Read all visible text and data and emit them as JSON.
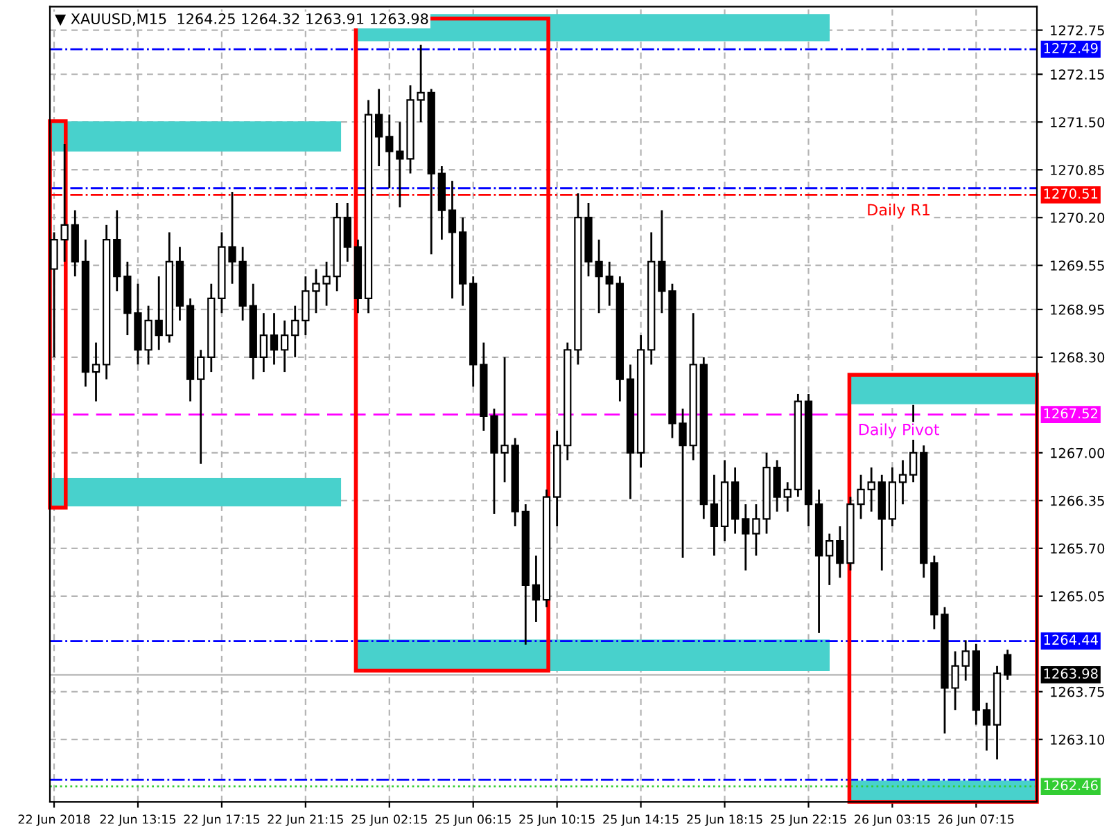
{
  "chart_data": {
    "type": "candlestick",
    "title": "▼ XAUUSD,M15  1264.25 1264.32 1263.91 1263.98",
    "categories": [
      "22 Jun 2018",
      null,
      null,
      null,
      null,
      null,
      null,
      null,
      "22 Jun 13:15",
      null,
      null,
      null,
      null,
      null,
      null,
      null,
      "22 Jun 17:15",
      null,
      null,
      null,
      null,
      null,
      null,
      null,
      "22 Jun 21:15",
      null,
      null,
      null,
      null,
      null,
      null,
      null,
      "25 Jun 02:15",
      null,
      null,
      null,
      null,
      null,
      null,
      null,
      "25 Jun 06:15",
      null,
      null,
      null,
      null,
      null,
      null,
      null,
      "25 Jun 10:15",
      null,
      null,
      null,
      null,
      null,
      null,
      null,
      "25 Jun 14:15",
      null,
      null,
      null,
      null,
      null,
      null,
      null,
      "25 Jun 18:15",
      null,
      null,
      null,
      null,
      null,
      null,
      null,
      "25 Jun 22:15",
      null,
      null,
      null,
      null,
      null,
      null,
      null,
      "26 Jun 03:15",
      null,
      null,
      null,
      null,
      null,
      null,
      null,
      "26 Jun 07:15",
      null,
      null,
      null
    ],
    "ohlc": [
      [
        1269.5,
        1270.0,
        1268.3,
        1269.9
      ],
      [
        1269.9,
        1271.2,
        1269.6,
        1270.1
      ],
      [
        1270.1,
        1270.3,
        1269.4,
        1269.6
      ],
      [
        1269.6,
        1269.9,
        1267.9,
        1268.1
      ],
      [
        1268.1,
        1268.5,
        1267.7,
        1268.2
      ],
      [
        1268.2,
        1270.1,
        1268.0,
        1269.9
      ],
      [
        1269.9,
        1270.3,
        1269.2,
        1269.4
      ],
      [
        1269.4,
        1269.6,
        1268.6,
        1268.9
      ],
      [
        1268.9,
        1269.3,
        1268.2,
        1268.4
      ],
      [
        1268.4,
        1269.0,
        1268.2,
        1268.8
      ],
      [
        1268.8,
        1269.4,
        1268.4,
        1268.6
      ],
      [
        1268.6,
        1270.0,
        1268.5,
        1269.6
      ],
      [
        1269.6,
        1269.8,
        1268.8,
        1269.0
      ],
      [
        1269.0,
        1269.1,
        1267.7,
        1268.0
      ],
      [
        1268.0,
        1268.4,
        1266.85,
        1268.3
      ],
      [
        1268.3,
        1269.3,
        1268.1,
        1269.1
      ],
      [
        1269.1,
        1270.0,
        1268.9,
        1269.8
      ],
      [
        1269.8,
        1270.55,
        1269.3,
        1269.6
      ],
      [
        1269.6,
        1269.8,
        1268.8,
        1269.0
      ],
      [
        1269.0,
        1269.3,
        1268.0,
        1268.3
      ],
      [
        1268.3,
        1268.9,
        1268.1,
        1268.6
      ],
      [
        1268.6,
        1268.9,
        1268.2,
        1268.4
      ],
      [
        1268.4,
        1268.8,
        1268.1,
        1268.6
      ],
      [
        1268.6,
        1269.0,
        1268.3,
        1268.8
      ],
      [
        1268.8,
        1269.4,
        1268.6,
        1269.2
      ],
      [
        1269.2,
        1269.5,
        1268.9,
        1269.3
      ],
      [
        1269.3,
        1269.6,
        1269.0,
        1269.4
      ],
      [
        1269.4,
        1270.4,
        1269.2,
        1270.2
      ],
      [
        1270.2,
        1270.4,
        1269.6,
        1269.8
      ],
      [
        1269.8,
        1269.9,
        1268.9,
        1269.1
      ],
      [
        1269.1,
        1271.8,
        1268.9,
        1271.6
      ],
      [
        1271.6,
        1271.95,
        1270.9,
        1271.3
      ],
      [
        1271.3,
        1271.6,
        1270.6,
        1271.1
      ],
      [
        1271.1,
        1271.5,
        1270.34,
        1271.0
      ],
      [
        1271.0,
        1272.0,
        1270.8,
        1271.8
      ],
      [
        1271.8,
        1272.55,
        1271.5,
        1271.9
      ],
      [
        1271.9,
        1271.95,
        1269.7,
        1270.8
      ],
      [
        1270.8,
        1270.9,
        1269.9,
        1270.3
      ],
      [
        1270.3,
        1270.7,
        1269.1,
        1270.0
      ],
      [
        1270.0,
        1270.2,
        1269.0,
        1269.3
      ],
      [
        1269.3,
        1269.4,
        1267.9,
        1268.2
      ],
      [
        1268.2,
        1268.5,
        1267.3,
        1267.5
      ],
      [
        1267.5,
        1267.6,
        1266.17,
        1267.0
      ],
      [
        1267.0,
        1268.3,
        1266.6,
        1267.1
      ],
      [
        1267.1,
        1267.2,
        1266.0,
        1266.2
      ],
      [
        1266.2,
        1266.3,
        1264.39,
        1265.2
      ],
      [
        1265.2,
        1265.6,
        1264.7,
        1265.0
      ],
      [
        1265.0,
        1266.5,
        1264.9,
        1266.4
      ],
      [
        1266.4,
        1267.3,
        1266.0,
        1267.1
      ],
      [
        1267.1,
        1268.5,
        1266.9,
        1268.4
      ],
      [
        1268.4,
        1270.53,
        1268.2,
        1270.2
      ],
      [
        1270.2,
        1270.4,
        1269.4,
        1269.6
      ],
      [
        1269.6,
        1269.9,
        1268.9,
        1269.4
      ],
      [
        1269.4,
        1269.6,
        1269.0,
        1269.3
      ],
      [
        1269.3,
        1269.4,
        1267.7,
        1268.0
      ],
      [
        1268.0,
        1268.2,
        1266.37,
        1267.0
      ],
      [
        1267.0,
        1268.6,
        1266.8,
        1268.4
      ],
      [
        1268.4,
        1270.0,
        1268.2,
        1269.6
      ],
      [
        1269.6,
        1270.3,
        1268.9,
        1269.2
      ],
      [
        1269.2,
        1269.3,
        1267.2,
        1267.4
      ],
      [
        1267.4,
        1267.6,
        1265.57,
        1267.1
      ],
      [
        1267.1,
        1268.9,
        1266.9,
        1268.2
      ],
      [
        1268.2,
        1268.3,
        1266.1,
        1266.3
      ],
      [
        1266.3,
        1266.7,
        1265.6,
        1266.0
      ],
      [
        1266.0,
        1266.9,
        1265.8,
        1266.6
      ],
      [
        1266.6,
        1266.8,
        1265.9,
        1266.1
      ],
      [
        1266.1,
        1266.3,
        1265.4,
        1265.9
      ],
      [
        1265.9,
        1266.3,
        1265.6,
        1266.1
      ],
      [
        1266.1,
        1267.0,
        1265.9,
        1266.8
      ],
      [
        1266.8,
        1266.9,
        1266.2,
        1266.4
      ],
      [
        1266.4,
        1266.6,
        1266.2,
        1266.5
      ],
      [
        1266.5,
        1267.8,
        1266.4,
        1267.7
      ],
      [
        1267.7,
        1267.8,
        1266.0,
        1266.3
      ],
      [
        1266.3,
        1266.5,
        1264.55,
        1265.6
      ],
      [
        1265.6,
        1265.9,
        1265.2,
        1265.8
      ],
      [
        1265.8,
        1266.0,
        1265.3,
        1265.5
      ],
      [
        1265.5,
        1266.4,
        1265.4,
        1266.3
      ],
      [
        1266.3,
        1266.7,
        1266.1,
        1266.5
      ],
      [
        1266.5,
        1266.8,
        1266.2,
        1266.6
      ],
      [
        1266.6,
        1266.7,
        1265.4,
        1266.1
      ],
      [
        1266.1,
        1266.8,
        1266.0,
        1266.6
      ],
      [
        1266.6,
        1266.9,
        1266.3,
        1266.7
      ],
      [
        1266.7,
        1267.65,
        1266.6,
        1267.0
      ],
      [
        1267.0,
        1267.1,
        1265.3,
        1265.5
      ],
      [
        1265.5,
        1265.6,
        1264.6,
        1264.8
      ],
      [
        1264.8,
        1264.9,
        1263.18,
        1263.8
      ],
      [
        1263.8,
        1264.3,
        1263.5,
        1264.1
      ],
      [
        1264.1,
        1264.45,
        1263.9,
        1264.3
      ],
      [
        1264.3,
        1264.4,
        1263.3,
        1263.5
      ],
      [
        1263.5,
        1263.6,
        1262.95,
        1263.3
      ],
      [
        1263.3,
        1264.1,
        1262.83,
        1264.0
      ],
      [
        1264.25,
        1264.32,
        1263.91,
        1263.98
      ]
    ],
    "color": "#000000",
    "ylim": [
      1262.25,
      1273.07
    ],
    "yticks": [
      {
        "value": 1272.75,
        "label": "1272.75"
      },
      {
        "value": 1272.15,
        "label": "1272.15"
      },
      {
        "value": 1271.5,
        "label": "1271.50"
      },
      {
        "value": 1270.85,
        "label": "1270.85"
      },
      {
        "value": 1270.2,
        "label": "1270.20"
      },
      {
        "value": 1269.55,
        "label": "1269.55"
      },
      {
        "value": 1268.95,
        "label": "1268.95"
      },
      {
        "value": 1268.3,
        "label": "1268.30"
      },
      {
        "value": 1267.0,
        "label": "1267.00"
      },
      {
        "value": 1266.35,
        "label": "1266.35"
      },
      {
        "value": 1265.7,
        "label": "1265.70"
      },
      {
        "value": 1265.05,
        "label": "1265.05"
      },
      {
        "value": 1263.75,
        "label": "1263.75"
      },
      {
        "value": 1263.1,
        "label": "1263.10"
      }
    ],
    "annotations": [
      {
        "text": "Daily R1",
        "y": 1270.51
      },
      {
        "text": "Daily Pivot",
        "y": 1267.52
      }
    ],
    "grid": true,
    "ref_lines": [
      {
        "axis": "y",
        "value": 1272.49,
        "color": "#0000ff",
        "line_style": "dashdot",
        "label": "1272.49"
      },
      {
        "axis": "y",
        "value": 1270.6,
        "color": "#0000ff",
        "line_style": "dashdot"
      },
      {
        "axis": "y",
        "value": 1270.51,
        "color": "#ff0000",
        "line_style": "dashdot",
        "label": "1270.51"
      },
      {
        "axis": "y",
        "value": 1267.52,
        "color": "#ff00ff",
        "line_style": "dashed",
        "label": "1267.52"
      },
      {
        "axis": "y",
        "value": 1264.44,
        "color": "#0000ff",
        "line_style": "dashdot",
        "label": "1264.44"
      },
      {
        "axis": "y",
        "value": 1263.98,
        "color": "#c0c0c0",
        "line_style": "solid",
        "label": "1263.98"
      },
      {
        "axis": "y",
        "value": 1262.55,
        "color": "#0000ff",
        "line_style": "dashdot"
      },
      {
        "axis": "y",
        "value": 1262.46,
        "color": "#32cd32",
        "line_style": "dotted",
        "label": "1262.46"
      }
    ],
    "bands": [
      {
        "axis": "y",
        "from": 1271.1,
        "to": 1271.51,
        "color": "#48d1cc"
      },
      {
        "axis": "y",
        "from": 1266.27,
        "to": 1266.66,
        "color": "#48d1cc"
      },
      {
        "axis": "y",
        "from": 1272.6,
        "to": 1272.97,
        "color": "#48d1cc"
      },
      {
        "axis": "y",
        "from": 1264.03,
        "to": 1264.46,
        "color": "#48d1cc"
      },
      {
        "axis": "y",
        "from": 1267.66,
        "to": 1268.05,
        "color": "#48d1cc"
      },
      {
        "axis": "y",
        "from": 1262.27,
        "to": 1262.54,
        "color": "#48d1cc"
      }
    ]
  }
}
